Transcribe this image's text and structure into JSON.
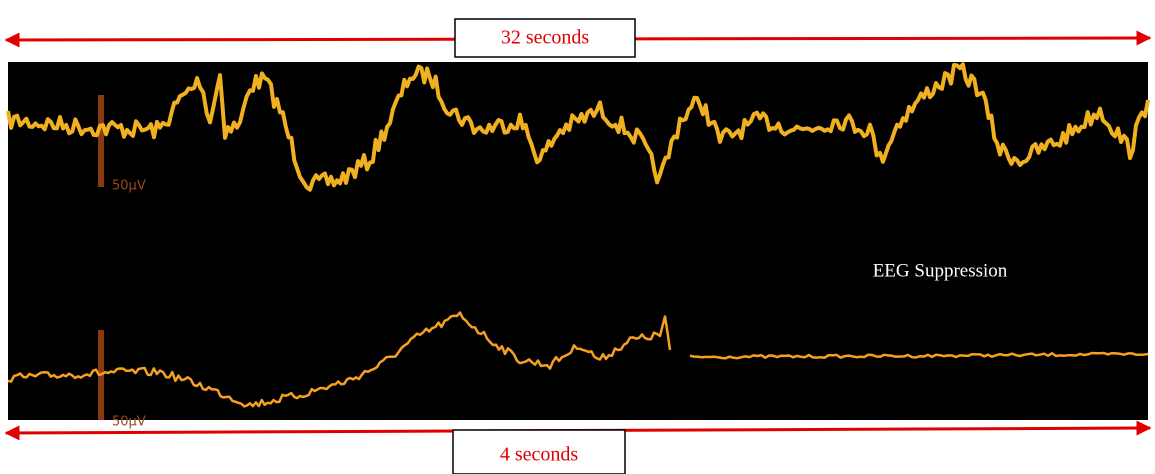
{
  "annotations": {
    "top_span": "32 seconds",
    "bottom_span": "4 seconds",
    "event": "EEG Suppression"
  },
  "scale_labels": [
    "50µV",
    "50µV"
  ]
}
